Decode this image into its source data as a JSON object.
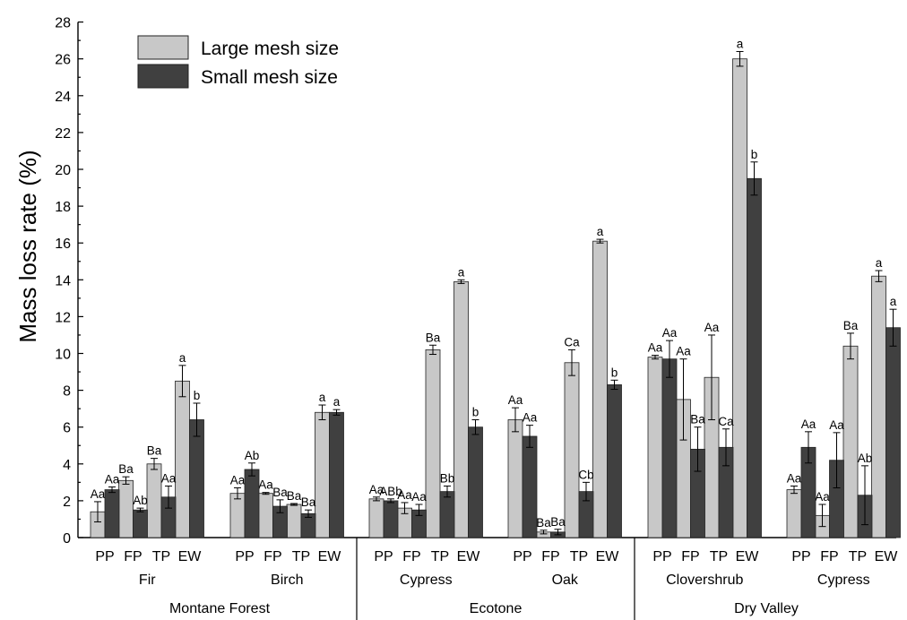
{
  "chart_data": {
    "type": "bar",
    "ylabel": "Mass loss rate (%)",
    "ylim": [
      0,
      28
    ],
    "yticks": [
      "0",
      "2",
      "4",
      "6",
      "8",
      "10",
      "12",
      "14",
      "16",
      "18",
      "20",
      "22",
      "24",
      "26",
      "28"
    ],
    "legend": {
      "placement": "top-left",
      "entries": [
        "Large mesh size",
        "Small mesh size"
      ]
    },
    "colors": {
      "large": "#c8c8c8",
      "small": "#404040"
    },
    "regions": [
      "Montane Forest",
      "Ecotone",
      "Dry Valley"
    ],
    "species": [
      "Fir",
      "Birch",
      "Cypress",
      "Oak",
      "Clovershrub",
      "Cypress"
    ],
    "periods": [
      "PP",
      "FP",
      "TP",
      "EW"
    ],
    "series": [
      {
        "name": "Large mesh size",
        "values": [
          1.4,
          3.1,
          4.0,
          8.5,
          2.4,
          2.4,
          1.8,
          6.8,
          2.1,
          1.6,
          10.2,
          13.9,
          6.4,
          0.3,
          9.5,
          16.1,
          9.8,
          7.5,
          8.7,
          26.0,
          2.6,
          1.2,
          10.4,
          14.2
        ],
        "errors": [
          0.55,
          0.2,
          0.3,
          0.85,
          0.3,
          0.05,
          0.05,
          0.4,
          0.1,
          0.3,
          0.25,
          0.1,
          0.65,
          0.1,
          0.7,
          0.1,
          0.1,
          2.2,
          2.3,
          0.4,
          0.2,
          0.6,
          0.7,
          0.3
        ],
        "letters": [
          "Aa",
          "Ba",
          "Ba",
          "a",
          "Aa",
          "Aa",
          "Ba",
          "a",
          "Aa",
          "Aa",
          "Ba",
          "a",
          "Aa",
          "Ba",
          "Ca",
          "a",
          "Aa",
          "Aa",
          "Aa",
          "a",
          "Aa",
          "Aa",
          "Ba",
          "a"
        ]
      },
      {
        "name": "Small mesh size",
        "values": [
          2.6,
          1.5,
          2.2,
          6.4,
          3.7,
          1.7,
          1.3,
          6.8,
          2.0,
          1.5,
          2.5,
          6.0,
          5.5,
          0.3,
          2.5,
          8.3,
          9.7,
          4.8,
          4.9,
          19.5,
          4.9,
          4.2,
          2.3,
          11.4
        ],
        "errors": [
          0.15,
          0.1,
          0.6,
          0.9,
          0.35,
          0.35,
          0.2,
          0.15,
          0.1,
          0.3,
          0.3,
          0.4,
          0.6,
          0.15,
          0.5,
          0.25,
          1.0,
          1.2,
          1.0,
          0.9,
          0.85,
          1.5,
          1.6,
          1.0
        ],
        "letters": [
          "Aa",
          "Ab",
          "Aa",
          "b",
          "Ab",
          "Ba",
          "Ba",
          "a",
          "ABb",
          "Aa",
          "Bb",
          "b",
          "Aa",
          "Ba",
          "Cb",
          "b",
          "Aa",
          "Ba",
          "Ca",
          "b",
          "Aa",
          "Aa",
          "Ab",
          "a"
        ]
      }
    ]
  }
}
